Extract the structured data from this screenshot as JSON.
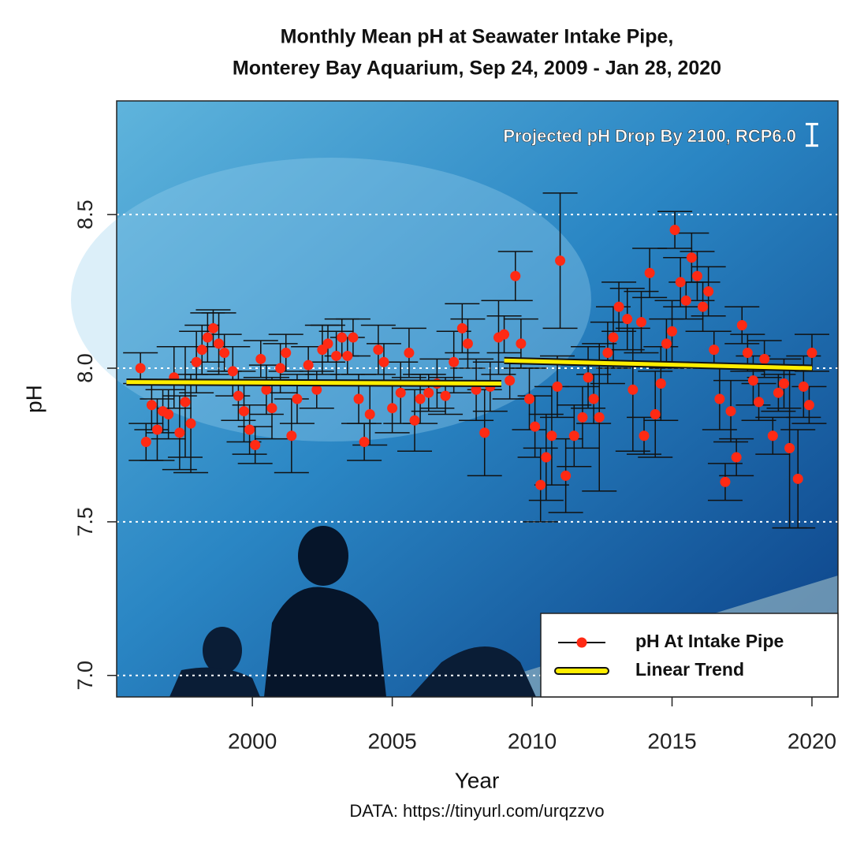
{
  "chart_data": {
    "type": "errorbar-scatter",
    "title": [
      "Monthly Mean pH at Seawater Intake Pipe,",
      "Monterey Bay Aquarium, Sep 24, 2009 - Jan 28, 2020"
    ],
    "x_label": "Year",
    "y_label": "pH",
    "source": "DATA: https://tinyurl.com/urqzzvo",
    "annotation": {
      "text": "Projected pH Drop By 2100, RCP6.0",
      "drop": 0.07,
      "color": "#ffffff"
    },
    "xlim": [
      1995.15,
      2020.93
    ],
    "ylim": [
      6.93,
      8.87
    ],
    "xticks": [
      2000,
      2005,
      2010,
      2015,
      2020
    ],
    "yticks": [
      {
        "value": 7,
        "label": "7.0"
      },
      {
        "value": 7.5,
        "label": "7.5"
      },
      {
        "value": 8,
        "label": "8.0"
      },
      {
        "value": 8.5,
        "label": "8.5"
      }
    ],
    "grid": true,
    "legend": "bottom-right",
    "series": [
      {
        "name": "pH At Intake Pipe",
        "color": "#ff2a14",
        "x": [
          1996.0,
          1996.2,
          1996.4,
          1996.6,
          1996.8,
          1997.0,
          1997.2,
          1997.4,
          1997.6,
          1997.8,
          1998.0,
          1998.2,
          1998.4,
          1998.6,
          1998.8,
          1999.0,
          1999.3,
          1999.5,
          1999.7,
          1999.9,
          2000.1,
          2000.3,
          2000.5,
          2000.7,
          2001.0,
          2001.2,
          2001.4,
          2001.6,
          2002.0,
          2002.3,
          2002.5,
          2002.7,
          2003.0,
          2003.2,
          2003.4,
          2003.6,
          2003.8,
          2004.0,
          2004.2,
          2004.5,
          2004.7,
          2005.0,
          2005.3,
          2005.6,
          2005.8,
          2006.0,
          2006.3,
          2006.6,
          2006.9,
          2007.2,
          2007.5,
          2007.7,
          2008.0,
          2008.3,
          2008.5,
          2008.8,
          2009.0,
          2009.2,
          2009.4,
          2009.6,
          2009.9,
          2010.1,
          2010.3,
          2010.5,
          2010.7,
          2010.9,
          2011.0,
          2011.2,
          2011.5,
          2011.8,
          2012.0,
          2012.2,
          2012.4,
          2012.7,
          2012.9,
          2013.1,
          2013.4,
          2013.6,
          2013.9,
          2014.0,
          2014.2,
          2014.4,
          2014.6,
          2014.8,
          2015.0,
          2015.1,
          2015.3,
          2015.5,
          2015.7,
          2015.9,
          2016.1,
          2016.3,
          2016.5,
          2016.7,
          2016.9,
          2017.1,
          2017.3,
          2017.5,
          2017.7,
          2017.9,
          2018.1,
          2018.3,
          2018.6,
          2018.8,
          2019.0,
          2019.2,
          2019.5,
          2019.7,
          2019.9,
          2020.0
        ],
        "values": [
          8.0,
          7.76,
          7.88,
          7.8,
          7.86,
          7.85,
          7.97,
          7.79,
          7.89,
          7.82,
          8.02,
          8.06,
          8.1,
          8.13,
          8.08,
          8.05,
          7.99,
          7.91,
          7.86,
          7.8,
          7.75,
          8.03,
          7.93,
          7.87,
          8.0,
          8.05,
          7.78,
          7.9,
          8.01,
          7.93,
          8.06,
          8.08,
          8.04,
          8.1,
          8.04,
          8.1,
          7.9,
          7.76,
          7.85,
          8.06,
          8.02,
          7.87,
          7.92,
          8.05,
          7.83,
          7.9,
          7.92,
          7.95,
          7.91,
          8.02,
          8.13,
          8.08,
          7.93,
          7.79,
          7.94,
          8.1,
          8.11,
          7.96,
          8.3,
          8.08,
          7.9,
          7.81,
          7.62,
          7.71,
          7.78,
          7.94,
          8.35,
          7.65,
          7.78,
          7.84,
          7.97,
          7.9,
          7.84,
          8.05,
          8.1,
          8.2,
          8.16,
          7.93,
          8.15,
          7.78,
          8.31,
          7.85,
          7.95,
          8.08,
          8.12,
          8.45,
          8.28,
          8.22,
          8.36,
          8.3,
          8.2,
          8.25,
          8.06,
          7.9,
          7.63,
          7.86,
          7.71,
          8.14,
          8.05,
          7.96,
          7.89,
          8.03,
          7.78,
          7.92,
          7.95,
          7.74,
          7.64,
          7.94,
          7.88,
          8.05
        ],
        "errors": [
          0.05,
          0.06,
          0.08,
          0.1,
          0.07,
          0.08,
          0.1,
          0.12,
          0.18,
          0.16,
          0.1,
          0.08,
          0.08,
          0.06,
          0.1,
          0.06,
          0.08,
          0.08,
          0.1,
          0.08,
          0.06,
          0.06,
          0.08,
          0.1,
          0.08,
          0.06,
          0.12,
          0.08,
          0.06,
          0.06,
          0.08,
          0.06,
          0.08,
          0.06,
          0.06,
          0.06,
          0.08,
          0.06,
          0.1,
          0.08,
          0.06,
          0.08,
          0.1,
          0.08,
          0.1,
          0.08,
          0.06,
          0.08,
          0.06,
          0.1,
          0.08,
          0.08,
          0.1,
          0.14,
          0.08,
          0.12,
          0.06,
          0.06,
          0.08,
          0.08,
          0.1,
          0.1,
          0.12,
          0.14,
          0.16,
          0.1,
          0.22,
          0.12,
          0.1,
          0.1,
          0.1,
          0.08,
          0.24,
          0.1,
          0.1,
          0.08,
          0.1,
          0.2,
          0.1,
          0.06,
          0.08,
          0.14,
          0.12,
          0.08,
          0.1,
          0.06,
          0.08,
          0.06,
          0.08,
          0.08,
          0.08,
          0.08,
          0.06,
          0.1,
          0.06,
          0.1,
          0.06,
          0.06,
          0.06,
          0.08,
          0.06,
          0.06,
          0.06,
          0.06,
          0.08,
          0.26,
          0.16,
          0.1,
          0.06,
          0.06
        ]
      },
      {
        "name": "Linear Trend",
        "color": "#ffee00",
        "x": [
          1995.5,
          2008.9,
          2008.95,
          2009.0,
          2020.0
        ],
        "values": [
          7.955,
          7.95,
          null,
          8.025,
          8.0
        ]
      }
    ]
  }
}
